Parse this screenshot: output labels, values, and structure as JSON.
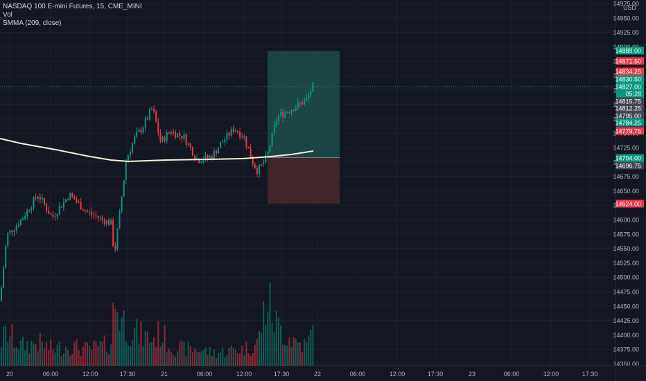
{
  "legend": {
    "title": "NASDAQ 100 E-mini Futures, 15, CME_MINI",
    "vol": "Vol",
    "smma": "SMMA (209, close)"
  },
  "axis": {
    "currency": "USD",
    "y_ticks": [
      "14975.00",
      "14950.00",
      "14925.00",
      "14900.00",
      "14875.00",
      "14850.00",
      "14825.00",
      "14800.00",
      "14775.00",
      "14750.00",
      "14725.00",
      "14700.00",
      "14675.00",
      "14650.00",
      "14625.00",
      "14600.00",
      "14575.00",
      "14550.00",
      "14525.00",
      "14500.00",
      "14475.00",
      "14450.00",
      "14425.00",
      "14400.00",
      "14375.00",
      "14350.00"
    ],
    "x_ticks": [
      "20",
      "06:00",
      "12:00",
      "17:30",
      "21",
      "06:00",
      "12:00",
      "17:30",
      "22",
      "06:00",
      "12:00",
      "17:30",
      "23",
      "06:00",
      "12:00",
      "17:30"
    ]
  },
  "price_badges": [
    {
      "label": "14889.00",
      "color": "#089981"
    },
    {
      "label": "14871.50",
      "color": "#f23645"
    },
    {
      "label": "14834.25",
      "color": "#f23645"
    },
    {
      "label": "14830.50",
      "color": "#089981"
    },
    {
      "label": "14827.00",
      "color": "#089981"
    },
    {
      "label": "05:28",
      "color": "#089981"
    },
    {
      "label": "14815.75",
      "color": "#434651"
    },
    {
      "label": "14812.25",
      "color": "#434651"
    },
    {
      "label": "14795.00",
      "color": "#434651"
    },
    {
      "label": "14784.25",
      "color": "#089981"
    },
    {
      "label": "14779.75",
      "color": "#f23645"
    },
    {
      "label": "14704.00",
      "color": "#089981"
    },
    {
      "label": "14696.75",
      "color": "#434651"
    },
    {
      "label": "14624.00",
      "color": "#f23645"
    }
  ],
  "colors": {
    "background": "#131722",
    "grid": "#1e222d",
    "up": "#089981",
    "down": "#f23645",
    "smma": "#f5f0d8",
    "axis_text": "#b2b5be",
    "profit_zone": "#1b4d4a",
    "loss_zone": "#4a2a2e"
  },
  "position_tool": {
    "type": "long",
    "entry": 14704.0,
    "target": 14889.0,
    "stop": 14624.0
  },
  "chart_data": {
    "type": "candlestick",
    "title": "NASDAQ 100 E-mini Futures, 15, CME_MINI",
    "ylim": [
      14340,
      14980
    ],
    "last_price": 14827.0,
    "smma_label": "SMMA (209, close)",
    "anchors": [
      {
        "x": 0,
        "price": 14455,
        "vol": 0.35
      },
      {
        "x": 10,
        "price": 14570,
        "vol": 0.5
      },
      {
        "x": 30,
        "price": 14595,
        "vol": 0.3
      },
      {
        "x": 55,
        "price": 14640,
        "vol": 0.35
      },
      {
        "x": 75,
        "price": 14600,
        "vol": 0.25
      },
      {
        "x": 100,
        "price": 14640,
        "vol": 0.3
      },
      {
        "x": 125,
        "price": 14610,
        "vol": 0.25
      },
      {
        "x": 150,
        "price": 14595,
        "vol": 0.3
      },
      {
        "x": 160,
        "price": 14590,
        "vol": 0.35
      },
      {
        "x": 165,
        "price": 14535,
        "vol": 1.0
      },
      {
        "x": 172,
        "price": 14600,
        "vol": 0.8
      },
      {
        "x": 182,
        "price": 14700,
        "vol": 0.6
      },
      {
        "x": 195,
        "price": 14740,
        "vol": 0.5
      },
      {
        "x": 205,
        "price": 14755,
        "vol": 0.45
      },
      {
        "x": 220,
        "price": 14790,
        "vol": 0.4
      },
      {
        "x": 232,
        "price": 14730,
        "vol": 0.5
      },
      {
        "x": 245,
        "price": 14750,
        "vol": 0.3
      },
      {
        "x": 265,
        "price": 14740,
        "vol": 0.25
      },
      {
        "x": 285,
        "price": 14700,
        "vol": 0.25
      },
      {
        "x": 305,
        "price": 14705,
        "vol": 0.2
      },
      {
        "x": 320,
        "price": 14730,
        "vol": 0.2
      },
      {
        "x": 338,
        "price": 14755,
        "vol": 0.25
      },
      {
        "x": 352,
        "price": 14740,
        "vol": 0.25
      },
      {
        "x": 365,
        "price": 14695,
        "vol": 0.3
      },
      {
        "x": 372,
        "price": 14680,
        "vol": 0.35
      },
      {
        "x": 385,
        "price": 14705,
        "vol": 1.0
      },
      {
        "x": 400,
        "price": 14775,
        "vol": 0.6
      },
      {
        "x": 415,
        "price": 14785,
        "vol": 0.45
      },
      {
        "x": 430,
        "price": 14795,
        "vol": 0.35
      },
      {
        "x": 443,
        "price": 14805,
        "vol": 0.3
      },
      {
        "x": 452,
        "price": 14830,
        "vol": 0.55
      }
    ]
  }
}
